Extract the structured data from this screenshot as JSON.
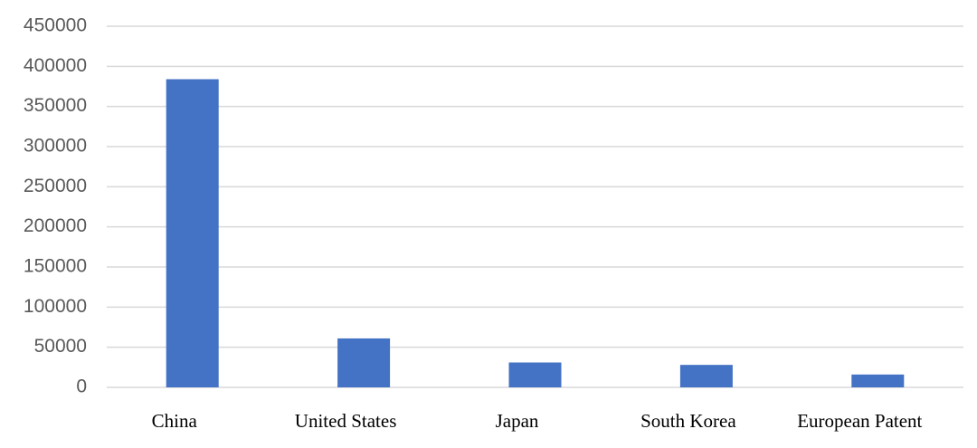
{
  "chart_data": {
    "type": "bar",
    "categories": [
      "China",
      "United States",
      "Japan",
      "South Korea",
      "European Patent"
    ],
    "values": [
      384000,
      61000,
      31000,
      28000,
      16000
    ],
    "color": "#4472c4",
    "ylim": [
      0,
      450000
    ],
    "yticks": [
      0,
      50000,
      100000,
      150000,
      200000,
      250000,
      300000,
      350000,
      400000,
      450000
    ],
    "grid": true
  }
}
